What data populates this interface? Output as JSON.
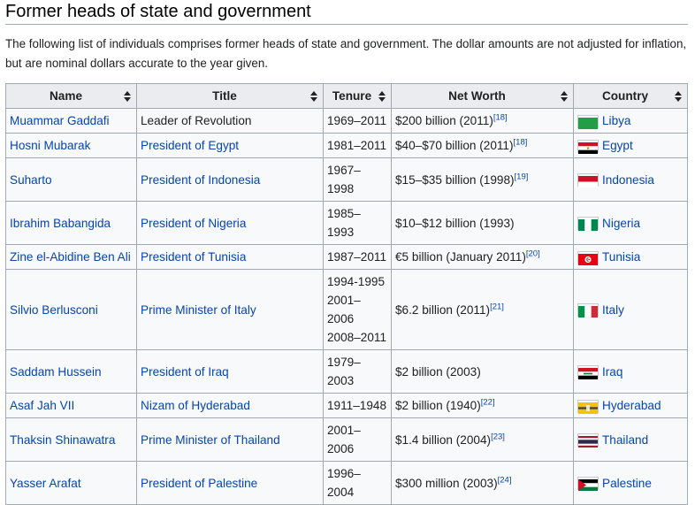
{
  "section_title": "Former heads of state and government",
  "intro": "The following list of individuals comprises former heads of state and government. The dollar amounts are not adjusted for inflation, but are nominal dollars accurate to the year given.",
  "columns": [
    "Name",
    "Title",
    "Tenure",
    "Net Worth",
    "Country"
  ],
  "rows": [
    {
      "name": "Muammar Gaddafi",
      "name_link": true,
      "title": "Leader of Revolution",
      "title_link": false,
      "tenure": "1969–2011",
      "worth": "$200 billion (2011)",
      "ref": "[18]",
      "country": "Libya",
      "flag": "libya-flag-icon"
    },
    {
      "name": "Hosni Mubarak",
      "name_link": true,
      "title": "President of Egypt",
      "title_link": true,
      "tenure": "1981–2011",
      "worth": "$40–$70 billion (2011)",
      "ref": "[18]",
      "country": "Egypt",
      "flag": "egypt-flag-icon"
    },
    {
      "name": "Suharto",
      "name_link": true,
      "title": "President of Indonesia",
      "title_link": true,
      "tenure": "1967–1998",
      "worth": "$15–$35 billion (1998)",
      "ref": "[19]",
      "country": "Indonesia",
      "flag": "indonesia-flag-icon"
    },
    {
      "name": "Ibrahim Babangida",
      "name_link": true,
      "title": "President of Nigeria",
      "title_link": true,
      "tenure": "1985–1993",
      "worth": "$10–$12 billion (1993)",
      "ref": "",
      "country": "Nigeria",
      "flag": "nigeria-flag-icon"
    },
    {
      "name": "Zine el-Abidine Ben Ali",
      "name_link": true,
      "title": "President of Tunisia",
      "title_link": true,
      "tenure": "1987–2011",
      "worth": "€5 billion (January 2011)",
      "ref": "[20]",
      "country": "Tunisia",
      "flag": "tunisia-flag-icon"
    },
    {
      "name": "Silvio Berlusconi",
      "name_link": true,
      "title": "Prime Minister of Italy",
      "title_link": true,
      "tenure_lines": [
        "1994-1995",
        "2001–2006",
        "2008–2011"
      ],
      "worth": "$6.2 billion (2011)",
      "ref": "[21]",
      "country": "Italy",
      "flag": "italy-flag-icon"
    },
    {
      "name": "Saddam Hussein",
      "name_link": true,
      "title": "President of Iraq",
      "title_link": true,
      "tenure": "1979–2003",
      "worth": "$2 billion (2003)",
      "ref": "",
      "country": "Iraq",
      "flag": "iraq-flag-icon"
    },
    {
      "name": "Asaf Jah VII",
      "name_link": true,
      "title": "Nizam of Hyderabad",
      "title_link": true,
      "tenure": "1911–1948",
      "worth": "$2 billion (1940)",
      "ref": "[22]",
      "country": "Hyderabad",
      "flag": "hyderabad-flag-icon"
    },
    {
      "name": "Thaksin Shinawatra",
      "name_link": true,
      "title": "Prime Minister of Thailand",
      "title_link": true,
      "tenure": "2001–2006",
      "worth": "$1.4 billion (2004)",
      "ref": "[23]",
      "country": "Thailand",
      "flag": "thailand-flag-icon"
    },
    {
      "name": "Yasser Arafat",
      "name_link": true,
      "title": "President of Palestine",
      "title_link": true,
      "tenure": "1996–2004",
      "worth": "$300 million (2003)",
      "ref": "[24]",
      "country": "Palestine",
      "flag": "palestine-flag-icon"
    }
  ]
}
